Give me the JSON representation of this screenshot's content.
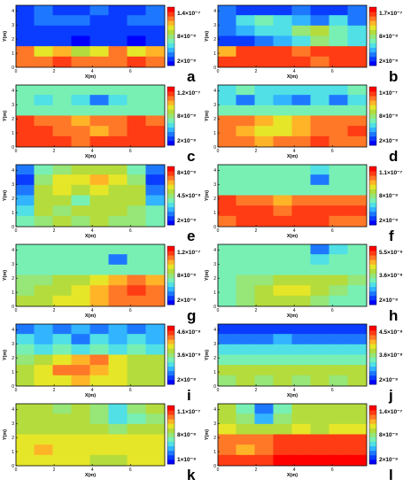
{
  "colors": {
    "colormap": [
      "#0000ff",
      "#0a3cff",
      "#1e78ff",
      "#32b4ff",
      "#50e0e6",
      "#78f0b4",
      "#96e678",
      "#b4dc3c",
      "#e6e628",
      "#ffb428",
      "#ff7828",
      "#ff3c14",
      "#ff0000"
    ],
    "background": "#ffffff"
  },
  "chart_data": [
    {
      "type": "heatmap",
      "panel_label": "a",
      "xlabel": "X(m)",
      "ylabel": "Y(m)",
      "x_ticks": [
        "0",
        "2",
        "4",
        "6"
      ],
      "y_ticks": [
        "0",
        "1",
        "2",
        "3",
        "4"
      ],
      "xlim": [
        0,
        7.8
      ],
      "ylim": [
        0,
        4.4
      ],
      "colorbar_labels": [
        "1.4×10⁻⁷",
        "8×10⁻⁸",
        "2×10⁻⁸"
      ],
      "z_grid": [
        [
          0.12,
          0.15,
          0.1,
          0.12,
          0.15,
          0.1,
          0.12,
          0.15
        ],
        [
          0.1,
          0.15,
          0.2,
          0.15,
          0.12,
          0.1,
          0.15,
          0.2
        ],
        [
          0.08,
          0.05,
          0.1,
          0.05,
          0.1,
          0.08,
          0.05,
          0.1
        ],
        [
          0.08,
          0.06,
          0.05,
          0.04,
          0.06,
          0.05,
          0.04,
          0.06
        ],
        [
          0.8,
          0.7,
          0.75,
          0.55,
          0.65,
          0.8,
          0.7,
          0.75
        ],
        [
          0.85,
          0.8,
          0.9,
          0.8,
          0.85,
          0.8,
          0.9,
          0.85
        ]
      ]
    },
    {
      "type": "heatmap",
      "panel_label": "b",
      "xlabel": "X(m)",
      "ylabel": "Y(m)",
      "x_ticks": [
        "0",
        "2",
        "4",
        "6"
      ],
      "y_ticks": [
        "0",
        "1",
        "2",
        "3",
        "4"
      ],
      "xlim": [
        0,
        7.8
      ],
      "ylim": [
        0,
        4.4
      ],
      "colorbar_labels": [
        "1.7×10⁻⁷",
        "8×10⁻⁸",
        "2×10⁻⁸"
      ],
      "z_grid": [
        [
          0.15,
          0.1,
          0.12,
          0.1,
          0.15,
          0.12,
          0.1,
          0.15
        ],
        [
          0.15,
          0.3,
          0.4,
          0.3,
          0.25,
          0.2,
          0.3,
          0.15
        ],
        [
          0.2,
          0.25,
          0.3,
          0.35,
          0.5,
          0.55,
          0.4,
          0.35
        ],
        [
          0.1,
          0.08,
          0.15,
          0.25,
          0.35,
          0.5,
          0.45,
          0.3
        ],
        [
          0.75,
          0.9,
          0.95,
          0.9,
          0.85,
          0.9,
          0.95,
          0.9
        ],
        [
          0.95,
          0.9,
          0.92,
          0.95,
          0.9,
          0.85,
          0.9,
          0.95
        ]
      ]
    },
    {
      "type": "heatmap",
      "panel_label": "c",
      "xlabel": "X(m)",
      "ylabel": "Y(m)",
      "x_ticks": [
        "0",
        "2",
        "4",
        "6"
      ],
      "y_ticks": [
        "0",
        "1",
        "2",
        "3",
        "4"
      ],
      "xlim": [
        0,
        7.8
      ],
      "ylim": [
        0,
        4.4
      ],
      "colorbar_labels": [
        "1.2×10⁻⁷",
        "8×10⁻⁸",
        "2×10⁻⁸"
      ],
      "z_grid": [
        [
          0.45,
          0.4,
          0.45,
          0.4,
          0.45,
          0.4,
          0.45,
          0.4
        ],
        [
          0.4,
          0.3,
          0.45,
          0.35,
          0.2,
          0.3,
          0.4,
          0.45
        ],
        [
          0.45,
          0.45,
          0.4,
          0.45,
          0.45,
          0.4,
          0.45,
          0.4
        ],
        [
          0.9,
          0.85,
          0.8,
          0.75,
          0.8,
          0.85,
          0.9,
          0.85
        ],
        [
          0.95,
          0.9,
          0.85,
          0.8,
          0.75,
          0.8,
          0.9,
          0.95
        ],
        [
          0.95,
          0.95,
          0.9,
          0.85,
          0.9,
          0.95,
          0.95,
          0.9
        ]
      ]
    },
    {
      "type": "heatmap",
      "panel_label": "d",
      "xlabel": "X(m)",
      "ylabel": "Y(m)",
      "x_ticks": [
        "0",
        "2",
        "4",
        "6"
      ],
      "y_ticks": [
        "0",
        "1",
        "2",
        "3",
        "4"
      ],
      "xlim": [
        0,
        7.8
      ],
      "ylim": [
        0,
        4.4
      ],
      "colorbar_labels": [
        "1×10⁻⁷",
        "8×10⁻⁸",
        "2×10⁻⁸"
      ],
      "z_grid": [
        [
          0.35,
          0.4,
          0.35,
          0.3,
          0.35,
          0.3,
          0.35,
          0.4
        ],
        [
          0.3,
          0.2,
          0.3,
          0.25,
          0.15,
          0.3,
          0.2,
          0.35
        ],
        [
          0.45,
          0.4,
          0.45,
          0.4,
          0.45,
          0.4,
          0.45,
          0.4
        ],
        [
          0.85,
          0.8,
          0.75,
          0.7,
          0.75,
          0.8,
          0.85,
          0.8
        ],
        [
          0.8,
          0.75,
          0.7,
          0.65,
          0.75,
          0.8,
          0.85,
          0.9
        ],
        [
          0.85,
          0.8,
          0.75,
          0.8,
          0.85,
          0.9,
          0.85,
          0.85
        ]
      ]
    },
    {
      "type": "heatmap",
      "panel_label": "e",
      "xlabel": "X(m)",
      "ylabel": "Y(m)",
      "x_ticks": [
        "0",
        "2",
        "4",
        "6"
      ],
      "y_ticks": [
        "0",
        "1",
        "2",
        "3",
        "4"
      ],
      "xlim": [
        0,
        7.8
      ],
      "ylim": [
        0,
        4.4
      ],
      "colorbar_labels": [
        "8×10⁻⁸",
        "4.5×10⁻⁸",
        "2×10⁻⁸"
      ],
      "z_grid": [
        [
          0.2,
          0.45,
          0.5,
          0.55,
          0.6,
          0.55,
          0.45,
          0.2
        ],
        [
          0.1,
          0.5,
          0.65,
          0.7,
          0.75,
          0.65,
          0.5,
          0.1
        ],
        [
          0.15,
          0.55,
          0.7,
          0.6,
          0.65,
          0.6,
          0.55,
          0.15
        ],
        [
          0.25,
          0.6,
          0.55,
          0.45,
          0.55,
          0.6,
          0.6,
          0.25
        ],
        [
          0.35,
          0.55,
          0.5,
          0.55,
          0.6,
          0.55,
          0.5,
          0.4
        ],
        [
          0.45,
          0.5,
          0.55,
          0.5,
          0.55,
          0.5,
          0.5,
          0.45
        ]
      ]
    },
    {
      "type": "heatmap",
      "panel_label": "f",
      "xlabel": "X(m)",
      "ylabel": "Y(m)",
      "x_ticks": [
        "0",
        "2",
        "4",
        "6"
      ],
      "y_ticks": [
        "0",
        "1",
        "2",
        "3",
        "4"
      ],
      "xlim": [
        0,
        7.8
      ],
      "ylim": [
        0,
        4.4
      ],
      "colorbar_labels": [
        "1.1×10⁻⁷",
        "8×10⁻⁸",
        "2×10⁻⁸"
      ],
      "z_grid": [
        [
          0.45,
          0.45,
          0.45,
          0.45,
          0.4,
          0.3,
          0.45,
          0.45
        ],
        [
          0.45,
          0.45,
          0.45,
          0.45,
          0.4,
          0.15,
          0.4,
          0.45
        ],
        [
          0.45,
          0.45,
          0.45,
          0.45,
          0.45,
          0.4,
          0.45,
          0.45
        ],
        [
          0.9,
          0.85,
          0.8,
          0.75,
          0.8,
          0.85,
          0.85,
          0.85
        ],
        [
          0.9,
          0.95,
          0.9,
          0.85,
          0.9,
          0.95,
          0.9,
          0.9
        ],
        [
          0.85,
          0.9,
          0.92,
          0.95,
          0.92,
          0.9,
          0.85,
          0.85
        ]
      ]
    },
    {
      "type": "heatmap",
      "panel_label": "g",
      "xlabel": "X(m)",
      "ylabel": "Y(m)",
      "x_ticks": [
        "0",
        "2",
        "4",
        "6"
      ],
      "y_ticks": [
        "0",
        "1",
        "2",
        "3",
        "4"
      ],
      "xlim": [
        0,
        7.8
      ],
      "ylim": [
        0,
        4.4
      ],
      "colorbar_labels": [
        "1.2×10⁻⁷",
        "8×10⁻⁸",
        "2×10⁻⁸"
      ],
      "z_grid": [
        [
          0.45,
          0.45,
          0.45,
          0.45,
          0.45,
          0.4,
          0.45,
          0.45
        ],
        [
          0.45,
          0.45,
          0.45,
          0.45,
          0.45,
          0.2,
          0.45,
          0.45
        ],
        [
          0.45,
          0.45,
          0.45,
          0.45,
          0.45,
          0.45,
          0.45,
          0.45
        ],
        [
          0.5,
          0.5,
          0.55,
          0.6,
          0.7,
          0.75,
          0.8,
          0.75
        ],
        [
          0.5,
          0.55,
          0.6,
          0.65,
          0.75,
          0.85,
          0.9,
          0.8
        ],
        [
          0.55,
          0.6,
          0.65,
          0.7,
          0.75,
          0.8,
          0.85,
          0.8
        ]
      ]
    },
    {
      "type": "heatmap",
      "panel_label": "h",
      "xlabel": "X(m)",
      "ylabel": "Y(m)",
      "x_ticks": [
        "0",
        "2",
        "4",
        "6"
      ],
      "y_ticks": [
        "0",
        "1",
        "2",
        "3",
        "4"
      ],
      "xlim": [
        0,
        7.8
      ],
      "ylim": [
        0,
        4.4
      ],
      "colorbar_labels": [
        "5.5×10⁻⁸",
        "3.6×10⁻⁸",
        "2×10⁻⁸"
      ],
      "z_grid": [
        [
          0.45,
          0.45,
          0.45,
          0.45,
          0.45,
          0.2,
          0.35,
          0.45
        ],
        [
          0.45,
          0.45,
          0.45,
          0.45,
          0.45,
          0.3,
          0.4,
          0.45
        ],
        [
          0.45,
          0.45,
          0.45,
          0.45,
          0.45,
          0.45,
          0.45,
          0.45
        ],
        [
          0.45,
          0.5,
          0.5,
          0.55,
          0.6,
          0.6,
          0.55,
          0.5
        ],
        [
          0.45,
          0.5,
          0.6,
          0.7,
          0.65,
          0.55,
          0.5,
          0.45
        ],
        [
          0.45,
          0.5,
          0.55,
          0.6,
          0.55,
          0.5,
          0.45,
          0.45
        ]
      ]
    },
    {
      "type": "heatmap",
      "panel_label": "i",
      "xlabel": "X(m)",
      "ylabel": "Y(m)",
      "x_ticks": [
        "0",
        "2",
        "4",
        "6"
      ],
      "y_ticks": [
        "0",
        "1",
        "2",
        "3",
        "4"
      ],
      "xlim": [
        0,
        7.8
      ],
      "ylim": [
        0,
        4.4
      ],
      "colorbar_labels": [
        "4.6×10⁻⁸",
        "3.6×10⁻⁸",
        "2×10⁻⁸"
      ],
      "z_grid": [
        [
          0.2,
          0.25,
          0.2,
          0.25,
          0.2,
          0.25,
          0.2,
          0.25
        ],
        [
          0.3,
          0.25,
          0.3,
          0.2,
          0.3,
          0.25,
          0.3,
          0.25
        ],
        [
          0.4,
          0.35,
          0.4,
          0.35,
          0.4,
          0.35,
          0.4,
          0.35
        ],
        [
          0.5,
          0.6,
          0.7,
          0.75,
          0.8,
          0.7,
          0.6,
          0.55
        ],
        [
          0.55,
          0.7,
          0.8,
          0.85,
          0.75,
          0.65,
          0.6,
          0.55
        ],
        [
          0.6,
          0.65,
          0.7,
          0.75,
          0.7,
          0.65,
          0.6,
          0.55
        ]
      ]
    },
    {
      "type": "heatmap",
      "panel_label": "j",
      "xlabel": "X(m)",
      "ylabel": "Y(m)",
      "x_ticks": [
        "0",
        "2",
        "4",
        "6"
      ],
      "y_ticks": [
        "0",
        "1",
        "2",
        "3",
        "4"
      ],
      "xlim": [
        0,
        7.8
      ],
      "ylim": [
        0,
        4.4
      ],
      "colorbar_labels": [
        "4.5×10⁻⁸",
        "3.6×10⁻⁸",
        "2×10⁻⁸"
      ],
      "z_grid": [
        [
          0.05,
          0.08,
          0.05,
          0.1,
          0.05,
          0.08,
          0.05,
          0.1
        ],
        [
          0.15,
          0.2,
          0.15,
          0.25,
          0.2,
          0.15,
          0.2,
          0.15
        ],
        [
          0.35,
          0.3,
          0.35,
          0.3,
          0.35,
          0.3,
          0.35,
          0.3
        ],
        [
          0.45,
          0.4,
          0.45,
          0.4,
          0.45,
          0.4,
          0.45,
          0.4
        ],
        [
          0.55,
          0.6,
          0.55,
          0.6,
          0.55,
          0.6,
          0.55,
          0.6
        ],
        [
          0.5,
          0.55,
          0.5,
          0.55,
          0.5,
          0.55,
          0.5,
          0.55
        ]
      ]
    },
    {
      "type": "heatmap",
      "panel_label": "k",
      "xlabel": "X(m)",
      "ylabel": "Y(m)",
      "x_ticks": [
        "0",
        "2",
        "4",
        "6"
      ],
      "y_ticks": [
        "0",
        "1",
        "2",
        "3",
        "4"
      ],
      "xlim": [
        0,
        7.8
      ],
      "ylim": [
        0,
        4.4
      ],
      "colorbar_labels": [
        "1.1×10⁻⁷",
        "8×10⁻⁸",
        "1×10⁻⁸"
      ],
      "z_grid": [
        [
          0.55,
          0.55,
          0.5,
          0.55,
          0.5,
          0.35,
          0.5,
          0.55
        ],
        [
          0.55,
          0.6,
          0.55,
          0.55,
          0.5,
          0.3,
          0.45,
          0.5
        ],
        [
          0.6,
          0.6,
          0.6,
          0.6,
          0.55,
          0.5,
          0.55,
          0.6
        ],
        [
          0.65,
          0.7,
          0.65,
          0.65,
          0.65,
          0.7,
          0.7,
          0.65
        ],
        [
          0.7,
          0.75,
          0.7,
          0.65,
          0.65,
          0.65,
          0.7,
          0.7
        ],
        [
          0.65,
          0.7,
          0.7,
          0.65,
          0.6,
          0.6,
          0.65,
          0.65
        ]
      ]
    },
    {
      "type": "heatmap",
      "panel_label": "l",
      "xlabel": "X(m)",
      "ylabel": "Y(m)",
      "x_ticks": [
        "0",
        "2",
        "4",
        "6"
      ],
      "y_ticks": [
        "0",
        "1",
        "2",
        "3",
        "4"
      ],
      "xlim": [
        0,
        7.8
      ],
      "ylim": [
        0,
        4.4
      ],
      "colorbar_labels": [
        "1.4×10⁻⁷",
        "8×10⁻⁸",
        "2×10⁻⁸"
      ],
      "z_grid": [
        [
          0.6,
          0.45,
          0.15,
          0.45,
          0.6,
          0.6,
          0.6,
          0.6
        ],
        [
          0.6,
          0.5,
          0.25,
          0.5,
          0.6,
          0.55,
          0.6,
          0.6
        ],
        [
          0.65,
          0.6,
          0.55,
          0.6,
          0.65,
          0.6,
          0.65,
          0.65
        ],
        [
          0.8,
          0.85,
          0.85,
          0.9,
          0.92,
          0.95,
          0.95,
          0.95
        ],
        [
          0.85,
          0.75,
          0.8,
          0.9,
          0.95,
          0.95,
          0.95,
          0.95
        ],
        [
          0.95,
          0.92,
          0.95,
          0.97,
          0.97,
          0.97,
          0.97,
          0.97
        ]
      ]
    }
  ]
}
